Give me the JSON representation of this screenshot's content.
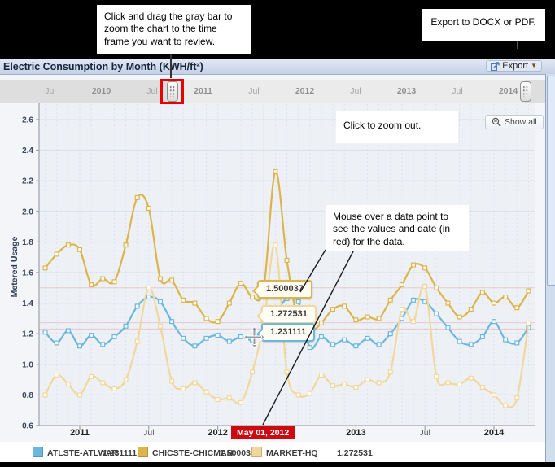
{
  "annotations": {
    "drag_note": "Click and drag the gray bar to zoom the chart to the time frame you want to review.",
    "export_note": "Export to DOCX or PDF.",
    "zoom_out_note": "Click to zoom out.",
    "hover_note": "Mouse over a data point to see the values and date (in red) for the data."
  },
  "header": {
    "title": "Electric Consumption by Month (KWH/ft²)",
    "export_label": "Export"
  },
  "slider": {
    "labels": [
      {
        "label": "Jul",
        "year": false
      },
      {
        "label": "2010",
        "year": true
      },
      {
        "label": "Jul",
        "year": false
      },
      {
        "label": "2011",
        "year": true
      },
      {
        "label": "Jul",
        "year": false
      },
      {
        "label": "2012",
        "year": true
      },
      {
        "label": "Jul",
        "year": false
      },
      {
        "label": "2013",
        "year": true
      },
      {
        "label": "Jul",
        "year": false
      },
      {
        "label": "2014",
        "year": true
      }
    ]
  },
  "show_all": {
    "label": "Show all"
  },
  "hover": {
    "date_label": "May 01, 2012",
    "month_index": 19
  },
  "tooltips": [
    {
      "value": "1.500037",
      "series": 1
    },
    {
      "value": "1.272531",
      "series": 2
    },
    {
      "value": "1.231111",
      "series": 0
    }
  ],
  "legend": {
    "items": [
      {
        "name": "ATLSTE-ATLWAR",
        "value": "1.231111",
        "color": "#6cb7dd"
      },
      {
        "name": "CHICSTE-CHICMAN",
        "value": "1.500037",
        "color": "#dcb44c"
      },
      {
        "name": "MARKET-HQ",
        "value": "1.272531",
        "color": "#f2d79c"
      }
    ]
  },
  "colors": {
    "series_blue": "#6cb7dd",
    "series_gold": "#dcb44c",
    "series_tan": "#f2d79c",
    "annotation_red": "#e60000",
    "date_flag_red": "#cc0a12",
    "crosshair_pink": "#e09aa4"
  },
  "chart_data": {
    "type": "line",
    "title": "Electric Consumption by Month (KWH/ft²)",
    "ylabel": "Metered Usage",
    "ylim": [
      0.6,
      2.6
    ],
    "ytick_step": 0.2,
    "grid": true,
    "legend_position": "bottom",
    "hovered_x": "May 01, 2012",
    "months": [
      "Oct 2010",
      "Nov 2010",
      "Dec 2010",
      "Jan 2011",
      "Feb 2011",
      "Mar 2011",
      "Apr 2011",
      "May 2011",
      "Jun 2011",
      "Jul 2011",
      "Aug 2011",
      "Sep 2011",
      "Oct 2011",
      "Nov 2011",
      "Dec 2011",
      "Jan 2012",
      "Feb 2012",
      "Mar 2012",
      "Apr 2012",
      "May 2012",
      "Jun 2012",
      "Jul 2012",
      "Aug 2012",
      "Sep 2012",
      "Oct 2012",
      "Nov 2012",
      "Dec 2012",
      "Jan 2013",
      "Feb 2013",
      "Mar 2013",
      "Apr 2013",
      "May 2013",
      "Jun 2013",
      "Jul 2013",
      "Aug 2013",
      "Sep 2013",
      "Oct 2013",
      "Nov 2013",
      "Dec 2013",
      "Jan 2014",
      "Feb 2014",
      "Mar 2014",
      "Apr 2014"
    ],
    "x_ticks": [
      {
        "label": "2011",
        "month": 3,
        "bold": true
      },
      {
        "label": "Jul",
        "month": 9,
        "bold": false
      },
      {
        "label": "2012",
        "month": 15,
        "bold": true
      },
      {
        "label": "Jul",
        "month": 21,
        "bold": false
      },
      {
        "label": "2013",
        "month": 27,
        "bold": true
      },
      {
        "label": "Jul",
        "month": 33,
        "bold": false
      },
      {
        "label": "2014",
        "month": 39,
        "bold": true
      }
    ],
    "series": [
      {
        "name": "ATLSTE-ATLWAR",
        "color": "#6cb7dd",
        "hover_value": 1.231111,
        "values": [
          1.21,
          1.14,
          1.22,
          1.12,
          1.19,
          1.13,
          1.18,
          1.25,
          1.38,
          1.44,
          1.41,
          1.28,
          1.17,
          1.12,
          1.17,
          1.19,
          1.15,
          1.18,
          1.16,
          1.231111,
          1.33,
          1.43,
          1.41,
          1.11,
          1.18,
          1.13,
          1.16,
          1.12,
          1.17,
          1.13,
          1.2,
          1.3,
          1.42,
          1.41,
          1.33,
          1.24,
          1.15,
          1.13,
          1.18,
          1.28,
          1.16,
          1.14,
          1.24
        ]
      },
      {
        "name": "CHICSTE-CHICMAN",
        "color": "#dcb44c",
        "hover_value": 1.500037,
        "values": [
          1.63,
          1.72,
          1.78,
          1.75,
          1.52,
          1.56,
          1.54,
          1.78,
          2.09,
          2.02,
          1.56,
          1.55,
          1.42,
          1.4,
          1.3,
          1.28,
          1.4,
          1.53,
          1.44,
          1.500037,
          2.26,
          1.68,
          1.28,
          1.21,
          1.27,
          1.36,
          1.38,
          1.29,
          1.31,
          1.3,
          1.42,
          1.52,
          1.65,
          1.63,
          1.5,
          1.4,
          1.31,
          1.36,
          1.47,
          1.4,
          1.44,
          1.37,
          1.48
        ]
      },
      {
        "name": "MARKET-HQ",
        "color": "#f2d79c",
        "hover_value": 1.272531,
        "values": [
          0.8,
          0.93,
          0.87,
          0.8,
          0.92,
          0.88,
          0.84,
          0.9,
          1.15,
          1.5,
          1.25,
          0.89,
          0.84,
          0.88,
          0.82,
          0.77,
          0.78,
          0.75,
          0.95,
          1.272531,
          1.78,
          0.95,
          0.8,
          0.81,
          0.93,
          0.86,
          0.87,
          0.85,
          0.9,
          0.88,
          0.95,
          1.36,
          1.28,
          1.51,
          0.92,
          0.88,
          0.87,
          0.91,
          0.85,
          0.8,
          0.73,
          0.78,
          1.27
        ]
      }
    ]
  }
}
